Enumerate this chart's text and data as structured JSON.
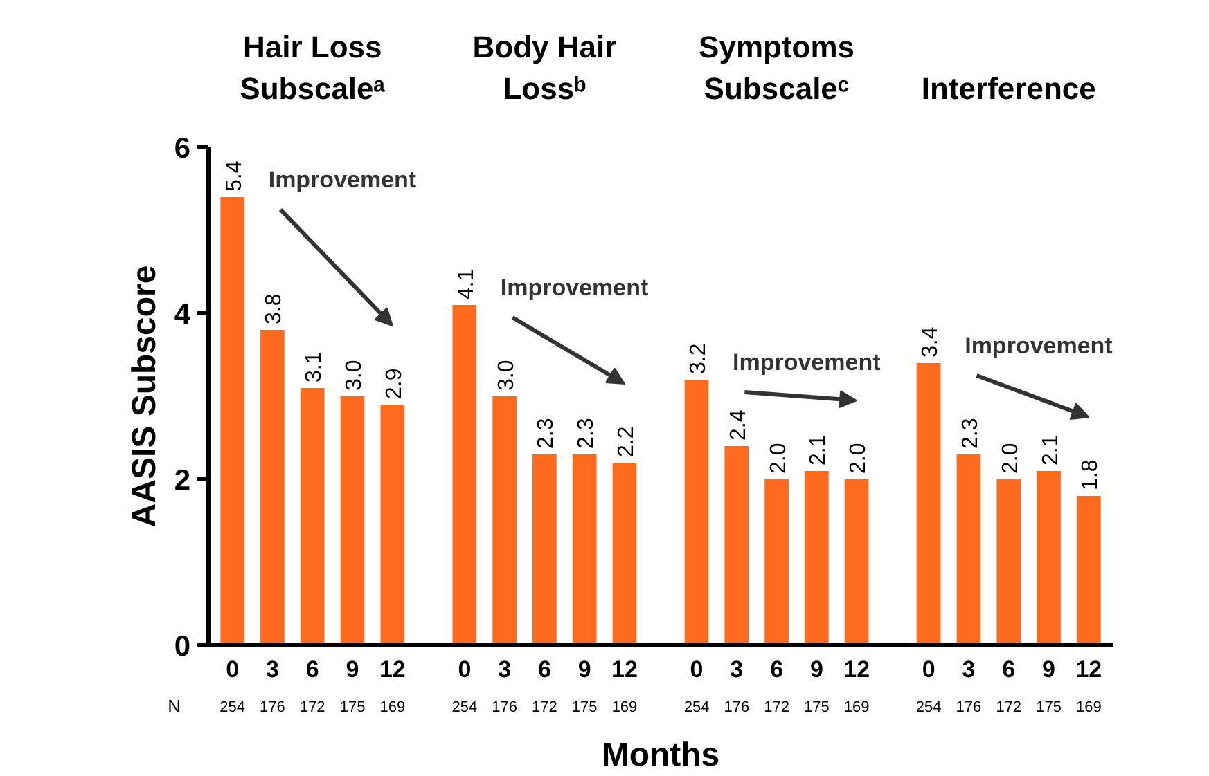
{
  "chart_data": {
    "type": "bar",
    "ylabel": "AASIS Subscore",
    "xlabel": "Months",
    "categories": [
      "0",
      "3",
      "6",
      "9",
      "12",
      "0",
      "3",
      "6",
      "9",
      "12",
      "0",
      "3",
      "6",
      "9",
      "12",
      "0",
      "3",
      "6",
      "9",
      "12"
    ],
    "values": [
      5.4,
      3.8,
      3.1,
      3.0,
      2.9,
      4.1,
      3.0,
      2.3,
      2.3,
      2.2,
      3.2,
      2.4,
      2.0,
      2.1,
      2.0,
      3.4,
      2.3,
      2.0,
      2.1,
      1.8
    ],
    "value_labels": [
      "5.4",
      "3.8",
      "3.1",
      "3.0",
      "2.9",
      "4.1",
      "3.0",
      "2.3",
      "2.3",
      "2.2",
      "3.2",
      "2.4",
      "2.0",
      "2.1",
      "2.0",
      "3.4",
      "2.3",
      "2.0",
      "2.1",
      "1.8"
    ],
    "color": "#ff6a1f",
    "ylim": [
      0,
      6
    ],
    "yticks": [
      0,
      2,
      4,
      6
    ],
    "annotations": [
      "Hair Loss Subscaleᵃ",
      "Body Hair Lossᵇ",
      "Symptoms Subscaleᶜ",
      "Interference",
      "Improvement",
      "Improvement",
      "Improvement",
      "Improvement",
      "N",
      "254",
      "176",
      "172",
      "175",
      "169",
      "254",
      "176",
      "172",
      "175",
      "169",
      "254",
      "176",
      "172",
      "175",
      "169",
      "254",
      "176",
      "172",
      "175",
      "169"
    ]
  }
}
